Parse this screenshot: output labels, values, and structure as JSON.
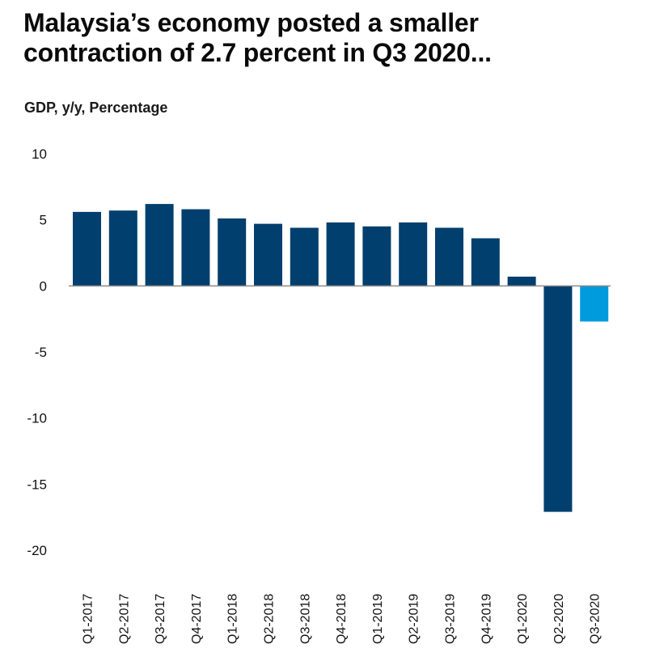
{
  "header": {
    "title_line1": "Malaysia’s economy posted a smaller",
    "title_line2": "contraction of 2.7 percent in Q3 2020...",
    "subtitle": "GDP, y/y, Percentage"
  },
  "colors": {
    "bar_default": "#003f6e",
    "bar_highlight": "#009bdc",
    "axis": "#8a8a8a"
  },
  "chart_data": {
    "type": "bar",
    "title": "Malaysia’s economy posted a smaller contraction of 2.7 percent in Q3 2020...",
    "subtitle": "GDP, y/y, Percentage",
    "xlabel": "",
    "ylabel": "GDP, y/y, Percentage",
    "categories": [
      "Q1-2017",
      "Q2-2017",
      "Q3-2017",
      "Q4-2017",
      "Q1-2018",
      "Q2-2018",
      "Q3-2018",
      "Q4-2018",
      "Q1-2019",
      "Q2-2019",
      "Q3-2019",
      "Q4-2019",
      "Q1-2020",
      "Q2-2020",
      "Q3-2020"
    ],
    "values": [
      5.6,
      5.7,
      6.2,
      5.8,
      5.1,
      4.7,
      4.4,
      4.8,
      4.5,
      4.8,
      4.4,
      3.6,
      0.7,
      -17.1,
      -2.7
    ],
    "highlight_index": 14,
    "ylim": [
      -20,
      10
    ],
    "yticks": [
      10,
      5,
      0,
      -5,
      -10,
      -15,
      -20
    ],
    "ytick_labels": [
      "10",
      "5",
      "0",
      "-5",
      "-10",
      "-15",
      "-20"
    ],
    "grid": false,
    "legend": "none"
  }
}
